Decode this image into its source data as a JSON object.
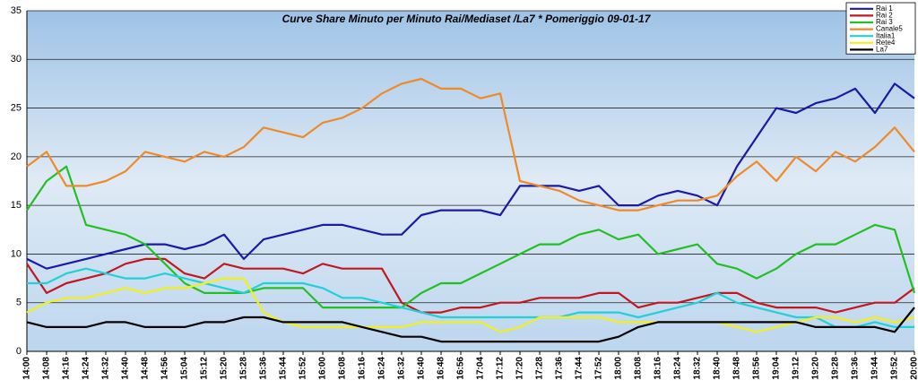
{
  "chart_data": {
    "type": "line",
    "title": "Curve Share Minuto per Minuto Rai/Mediaset /La7 * Pomeriggio  09-01-17",
    "categories": [
      "14:00",
      "14:08",
      "14:16",
      "14:24",
      "14:32",
      "14:40",
      "14:48",
      "14:56",
      "15:04",
      "15:12",
      "15:20",
      "15:28",
      "15:36",
      "15:44",
      "15:52",
      "16:00",
      "16:08",
      "16:16",
      "16:24",
      "16:32",
      "16:40",
      "16:48",
      "16:56",
      "17:04",
      "17:12",
      "17:20",
      "17:28",
      "17:36",
      "17:44",
      "17:52",
      "18:00",
      "18:08",
      "18:16",
      "18:24",
      "18:32",
      "18:40",
      "18:48",
      "18:56",
      "19:04",
      "19:12",
      "19:20",
      "19:28",
      "19:36",
      "19:44",
      "19:52",
      "20:00"
    ],
    "series": [
      {
        "name": "Rai 1",
        "color": "#1a1aa6",
        "values": [
          9.5,
          8.5,
          9,
          9.5,
          10,
          10.5,
          11,
          11,
          10.5,
          11,
          12,
          9.5,
          11.5,
          12,
          12.5,
          13,
          13,
          12.5,
          12,
          12,
          14,
          14.5,
          14.5,
          14.5,
          14,
          17,
          17,
          17,
          16.5,
          17,
          15,
          15,
          16,
          16.5,
          16,
          15,
          19,
          22,
          25,
          24.5,
          25.5,
          26,
          27,
          24.5,
          27.5,
          26
        ]
      },
      {
        "name": "Rai 2",
        "color": "#c0181e",
        "values": [
          9,
          6,
          7,
          7.5,
          8,
          9,
          9.5,
          9.5,
          8,
          7.5,
          9,
          8.5,
          8.5,
          8.5,
          8,
          9,
          8.5,
          8.5,
          8.5,
          5,
          4,
          4,
          4.5,
          4.5,
          5,
          5,
          5.5,
          5.5,
          5.5,
          6,
          6,
          4.5,
          5,
          5,
          5.5,
          6,
          6,
          5,
          4.5,
          4.5,
          4.5,
          4,
          4.5,
          5,
          5,
          6.5
        ]
      },
      {
        "name": "Rai 3",
        "color": "#22c022",
        "values": [
          14.5,
          17.5,
          19,
          13,
          12.5,
          12,
          11,
          9,
          7,
          6,
          6,
          6,
          6.5,
          6.5,
          6.5,
          4.5,
          4.5,
          4.5,
          4.5,
          4.5,
          6,
          7,
          7,
          8,
          9,
          10,
          11,
          11,
          12,
          12.5,
          11.5,
          12,
          10,
          10.5,
          11,
          9,
          8.5,
          7.5,
          8.5,
          10,
          11,
          11,
          12,
          13,
          12.5,
          6
        ]
      },
      {
        "name": "Canale5",
        "color": "#ee8a2a",
        "values": [
          19,
          20.5,
          17,
          17,
          17.5,
          18.5,
          20.5,
          20,
          19.5,
          20.5,
          20,
          21,
          23,
          22.5,
          22,
          23.5,
          24,
          25,
          26.5,
          27.5,
          28,
          27,
          27,
          26,
          26.5,
          17.5,
          17,
          16.5,
          15.5,
          15,
          14.5,
          14.5,
          15,
          15.5,
          15.5,
          16,
          18,
          19.5,
          17.5,
          20,
          18.5,
          20.5,
          19.5,
          21,
          23,
          20.5
        ]
      },
      {
        "name": "Italia1",
        "color": "#22d0d8",
        "values": [
          7,
          7,
          8,
          8.5,
          8,
          7.5,
          7.5,
          8,
          7.5,
          7,
          6.5,
          6,
          7,
          7,
          7,
          6.5,
          5.5,
          5.5,
          5,
          4.5,
          4,
          3.5,
          3.5,
          3.5,
          3.5,
          3.5,
          3.5,
          3.5,
          4,
          4,
          4,
          3.5,
          4,
          4.5,
          5,
          6,
          5,
          4.5,
          4,
          3.5,
          3.5,
          2.5,
          2.5,
          3,
          2.5,
          2.5
        ]
      },
      {
        "name": "Rete4",
        "color": "#f0f020",
        "values": [
          4,
          5,
          5.5,
          5.5,
          6,
          6.5,
          6,
          6.5,
          6.5,
          7,
          7.5,
          7.5,
          4,
          3,
          2.5,
          2.5,
          2.5,
          2.5,
          2.5,
          2.5,
          3,
          3,
          3,
          3,
          2,
          2.5,
          3.5,
          3.5,
          3.5,
          3.5,
          3,
          3,
          3,
          3,
          3,
          3,
          2.5,
          2,
          2.5,
          3,
          3.5,
          3.5,
          3,
          3.5,
          3,
          3.5
        ]
      },
      {
        "name": "La7",
        "color": "#000000",
        "values": [
          3,
          2.5,
          2.5,
          2.5,
          3,
          3,
          2.5,
          2.5,
          2.5,
          3,
          3,
          3.5,
          3.5,
          3,
          3,
          3,
          3,
          2.5,
          2,
          1.5,
          1.5,
          1,
          1,
          1,
          1,
          1,
          1,
          1,
          1,
          1,
          1.5,
          2.5,
          3,
          3,
          3,
          3,
          3,
          3,
          3,
          3,
          2.5,
          2.5,
          2.5,
          2.5,
          2,
          4.5
        ]
      }
    ],
    "ylim": [
      0,
      35
    ],
    "yticks": [
      0,
      5,
      10,
      15,
      20,
      25,
      30,
      35
    ],
    "grid": true,
    "legend": "top-right"
  }
}
